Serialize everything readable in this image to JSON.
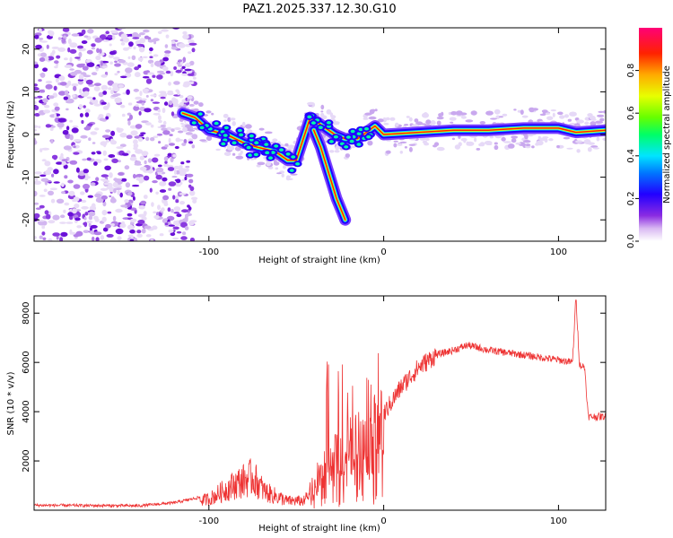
{
  "title": "PAZ1.2025.337.12.30.G10",
  "chart_data": [
    {
      "type": "heatmap",
      "name": "spectrogram",
      "xlabel": "Height of straight line (km)",
      "ylabel": "Frequency (Hz)",
      "xlim": [
        -200,
        127
      ],
      "ylim": [
        -25,
        25
      ],
      "xticks": [
        -100,
        0,
        100
      ],
      "yticks": [
        -20,
        -10,
        0,
        10,
        20
      ],
      "colorbar": {
        "label": "Normalized spectral amplitude",
        "range": [
          0,
          1
        ],
        "ticks": [
          0.0,
          0.2,
          0.4,
          0.6,
          0.8
        ]
      },
      "ridge": [
        {
          "x": -115,
          "y": 5
        },
        {
          "x": -108,
          "y": 4
        },
        {
          "x": -100,
          "y": 1
        },
        {
          "x": -90,
          "y": 0
        },
        {
          "x": -80,
          "y": -2
        },
        {
          "x": -72,
          "y": -3
        },
        {
          "x": -62,
          "y": -4
        },
        {
          "x": -55,
          "y": -6
        },
        {
          "x": -50,
          "y": -6
        },
        {
          "x": -42,
          "y": 4
        },
        {
          "x": -35,
          "y": 2
        },
        {
          "x": -28,
          "y": 0
        },
        {
          "x": -22,
          "y": -1
        },
        {
          "x": -15,
          "y": -1
        },
        {
          "x": -5,
          "y": 2
        },
        {
          "x": 0,
          "y": 0
        },
        {
          "x": 20,
          "y": 0.5
        },
        {
          "x": 40,
          "y": 1
        },
        {
          "x": 60,
          "y": 1
        },
        {
          "x": 80,
          "y": 1.5
        },
        {
          "x": 100,
          "y": 1.5
        },
        {
          "x": 110,
          "y": 0.5
        },
        {
          "x": 127,
          "y": 1
        }
      ],
      "branch": [
        {
          "x": -40,
          "y": 1
        },
        {
          "x": -36,
          "y": -3
        },
        {
          "x": -33,
          "y": -7
        },
        {
          "x": -30,
          "y": -11
        },
        {
          "x": -27,
          "y": -15
        },
        {
          "x": -24,
          "y": -18
        },
        {
          "x": -22,
          "y": -20
        }
      ]
    },
    {
      "type": "line",
      "name": "snr",
      "xlabel": "Height of straight line (km)",
      "ylabel": "SNR (10 * v/v)",
      "xlim": [
        -200,
        127
      ],
      "ylim": [
        0,
        8700
      ],
      "xticks": [
        -100,
        0,
        100
      ],
      "yticks": [
        2000,
        4000,
        6000,
        8000
      ],
      "color": "#ee3333",
      "envelope": [
        {
          "x": -200,
          "y": 200
        },
        {
          "x": -140,
          "y": 180
        },
        {
          "x": -120,
          "y": 300
        },
        {
          "x": -100,
          "y": 600
        },
        {
          "x": -85,
          "y": 1400
        },
        {
          "x": -75,
          "y": 1800
        },
        {
          "x": -68,
          "y": 1000
        },
        {
          "x": -55,
          "y": 500
        },
        {
          "x": -45,
          "y": 500
        },
        {
          "x": -38,
          "y": 1500
        },
        {
          "x": -30,
          "y": 2200
        },
        {
          "x": -22,
          "y": 2800
        },
        {
          "x": -12,
          "y": 3300
        },
        {
          "x": 0,
          "y": 3900
        },
        {
          "x": 10,
          "y": 5000
        },
        {
          "x": 20,
          "y": 5800
        },
        {
          "x": 30,
          "y": 6300
        },
        {
          "x": 40,
          "y": 6500
        },
        {
          "x": 48,
          "y": 6700
        },
        {
          "x": 60,
          "y": 6500
        },
        {
          "x": 80,
          "y": 6300
        },
        {
          "x": 100,
          "y": 6100
        },
        {
          "x": 108,
          "y": 6000
        },
        {
          "x": 110,
          "y": 8700
        },
        {
          "x": 112,
          "y": 5900
        },
        {
          "x": 115,
          "y": 5800
        },
        {
          "x": 117,
          "y": 3800
        },
        {
          "x": 127,
          "y": 3800
        }
      ]
    }
  ]
}
